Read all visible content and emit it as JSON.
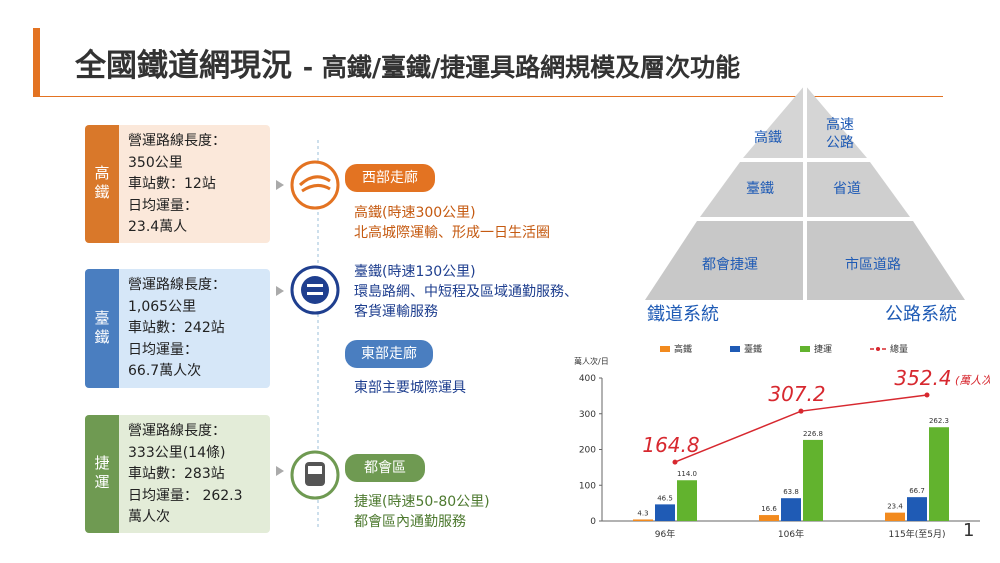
{
  "header": {
    "title": "全國鐵道網現況",
    "subtitle": "- 高鐵/臺鐵/捷運具路網規模及層次功能"
  },
  "cards": [
    {
      "label": "高鐵",
      "lines": [
        "營運路線長度：",
        "350公里",
        "車站數：12站",
        "日均運量：",
        "23.4萬人"
      ]
    },
    {
      "label": "臺鐵",
      "lines": [
        "營運路線長度：",
        "1,065公里",
        "車站數：242站",
        "日均運量：",
        "66.7萬人次"
      ]
    },
    {
      "label": "捷運",
      "lines": [
        "營運路線長度：",
        "333公里(14條)",
        "車站數：283站",
        "日均運量： 262.3",
        "萬人次"
      ]
    }
  ],
  "corridors": [
    {
      "label": "西部走廊",
      "lines": [
        "高鐵(時速300公里)",
        "北高城際運輸、形成一日生活圈",
        "臺鐵(時速130公里)",
        "環島路網、中短程及區域通勤服務、",
        "客貨運輸服務"
      ]
    },
    {
      "label": "東部走廊",
      "lines": [
        "東部主要城際運具"
      ]
    },
    {
      "label": "都會區",
      "lines": [
        "捷運(時速50-80公里)",
        "都會區內通勤服務"
      ]
    }
  ],
  "pyramid": {
    "rail": [
      "高鐵",
      "臺鐵",
      "都會捷運"
    ],
    "road": [
      "高速\n公路",
      "省道",
      "市區道路"
    ],
    "rail_label": "鐵道系統",
    "road_label": "公路系統"
  },
  "page_number": "1",
  "chart_data": {
    "type": "bar",
    "y_label": "萬人次/日",
    "categories": [
      "96年",
      "106年",
      "115年(至5月)"
    ],
    "ylim": [
      0,
      400
    ],
    "yticks": [
      0,
      100,
      200,
      300,
      400
    ],
    "series": [
      {
        "name": "高鐵",
        "color": "#f28a1e",
        "values": [
          4.3,
          16.6,
          23.4
        ]
      },
      {
        "name": "臺鐵",
        "color": "#1f5bb5",
        "values": [
          46.5,
          63.8,
          66.7
        ]
      },
      {
        "name": "捷運",
        "color": "#62b32e",
        "values": [
          114,
          226.8,
          262.3
        ],
        "value_labels": [
          "114.0",
          "226.8",
          "262.3"
        ]
      },
      {
        "name": "總量",
        "type": "line",
        "color": "#d7282f",
        "values": [
          164.8,
          307.2,
          352.4
        ]
      }
    ],
    "annotation": "(萬人次/日)"
  }
}
